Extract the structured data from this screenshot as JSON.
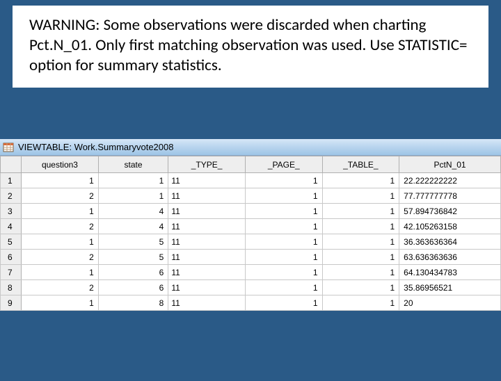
{
  "warning": {
    "text": "WARNING: Some observations were discarded when charting Pct.N_01.  Only first matching observation was used.  Use STATISTIC= option for summary statistics."
  },
  "window": {
    "title": "VIEWTABLE: Work.Summaryvote2008"
  },
  "table": {
    "columns": [
      "question3",
      "state",
      "_TYPE_",
      "_PAGE_",
      "_TABLE_",
      "PctN_01"
    ],
    "rows": [
      {
        "n": "1",
        "question3": "1",
        "state": "1",
        "type": "11",
        "page": "1",
        "table": "1",
        "pct": "22.222222222"
      },
      {
        "n": "2",
        "question3": "2",
        "state": "1",
        "type": "11",
        "page": "1",
        "table": "1",
        "pct": "77.777777778"
      },
      {
        "n": "3",
        "question3": "1",
        "state": "4",
        "type": "11",
        "page": "1",
        "table": "1",
        "pct": "57.894736842"
      },
      {
        "n": "4",
        "question3": "2",
        "state": "4",
        "type": "11",
        "page": "1",
        "table": "1",
        "pct": "42.105263158"
      },
      {
        "n": "5",
        "question3": "1",
        "state": "5",
        "type": "11",
        "page": "1",
        "table": "1",
        "pct": "36.363636364"
      },
      {
        "n": "6",
        "question3": "2",
        "state": "5",
        "type": "11",
        "page": "1",
        "table": "1",
        "pct": "63.636363636"
      },
      {
        "n": "7",
        "question3": "1",
        "state": "6",
        "type": "11",
        "page": "1",
        "table": "1",
        "pct": "64.130434783"
      },
      {
        "n": "8",
        "question3": "2",
        "state": "6",
        "type": "11",
        "page": "1",
        "table": "1",
        "pct": "35.86956521"
      },
      {
        "n": "9",
        "question3": "1",
        "state": "8",
        "type": "11",
        "page": "1",
        "table": "1",
        "pct": "20"
      }
    ]
  }
}
